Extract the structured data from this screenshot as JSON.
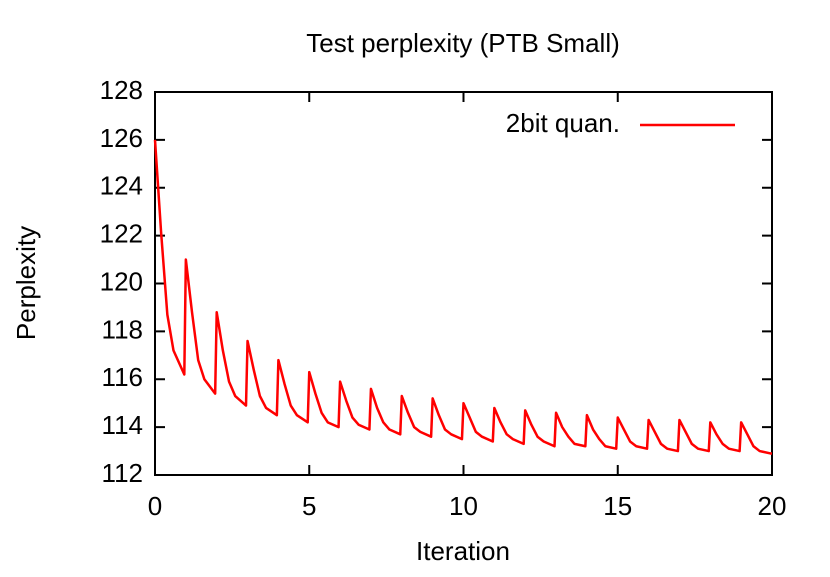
{
  "chart_data": {
    "type": "line",
    "title": "Test perplexity (PTB Small)",
    "x_label": "Iteration",
    "y_label": "Perplexity",
    "xlim": [
      0,
      20
    ],
    "ylim": [
      112,
      128
    ],
    "xticks": [
      0,
      5,
      10,
      15,
      20
    ],
    "yticks": [
      112,
      114,
      116,
      118,
      120,
      122,
      124,
      126,
      128
    ],
    "legend": "top-right",
    "x": [
      0,
      0.2,
      0.4,
      0.6,
      0.95,
      1,
      1.2,
      1.4,
      1.6,
      1.95,
      2,
      2.2,
      2.4,
      2.6,
      2.95,
      3,
      3.2,
      3.4,
      3.6,
      3.95,
      4,
      4.2,
      4.4,
      4.6,
      4.95,
      5,
      5.2,
      5.4,
      5.6,
      5.95,
      6,
      6.2,
      6.4,
      6.6,
      6.95,
      7,
      7.2,
      7.4,
      7.6,
      7.95,
      8,
      8.2,
      8.4,
      8.6,
      8.95,
      9,
      9.2,
      9.4,
      9.6,
      9.95,
      10,
      10.2,
      10.4,
      10.6,
      10.95,
      11,
      11.2,
      11.4,
      11.6,
      11.95,
      12,
      12.2,
      12.4,
      12.6,
      12.95,
      13,
      13.2,
      13.4,
      13.6,
      13.95,
      14,
      14.2,
      14.4,
      14.6,
      14.95,
      15,
      15.2,
      15.4,
      15.6,
      15.95,
      16,
      16.2,
      16.4,
      16.6,
      16.95,
      17,
      17.2,
      17.4,
      17.6,
      17.95,
      18,
      18.2,
      18.4,
      18.6,
      18.95,
      19,
      19.2,
      19.4,
      19.6,
      19.95,
      20
    ],
    "series": [
      {
        "name": "2bit quan.",
        "color": "#ff0000",
        "values": [
          126,
          122.1,
          118.7,
          117.2,
          116.2,
          121,
          118.8,
          116.8,
          116.0,
          115.4,
          118.8,
          117.2,
          115.9,
          115.3,
          114.9,
          117.6,
          116.4,
          115.3,
          114.8,
          114.5,
          116.8,
          115.8,
          114.9,
          114.5,
          114.2,
          116.3,
          115.4,
          114.6,
          114.2,
          114.0,
          115.9,
          115.1,
          114.4,
          114.1,
          113.9,
          115.6,
          114.8,
          114.2,
          113.9,
          113.7,
          115.3,
          114.6,
          114.0,
          113.8,
          113.6,
          115.2,
          114.5,
          113.9,
          113.7,
          113.5,
          115.0,
          114.4,
          113.8,
          113.6,
          113.4,
          114.8,
          114.2,
          113.7,
          113.5,
          113.3,
          114.7,
          114.1,
          113.6,
          113.4,
          113.2,
          114.6,
          114.0,
          113.6,
          113.3,
          113.2,
          114.5,
          113.9,
          113.5,
          113.2,
          113.1,
          114.4,
          113.9,
          113.4,
          113.2,
          113.1,
          114.3,
          113.8,
          113.3,
          113.1,
          113.0,
          114.3,
          113.8,
          113.3,
          113.1,
          113.0,
          114.2,
          113.7,
          113.3,
          113.1,
          113.0,
          114.2,
          113.7,
          113.2,
          113.0,
          112.9,
          112.9
        ]
      }
    ]
  }
}
